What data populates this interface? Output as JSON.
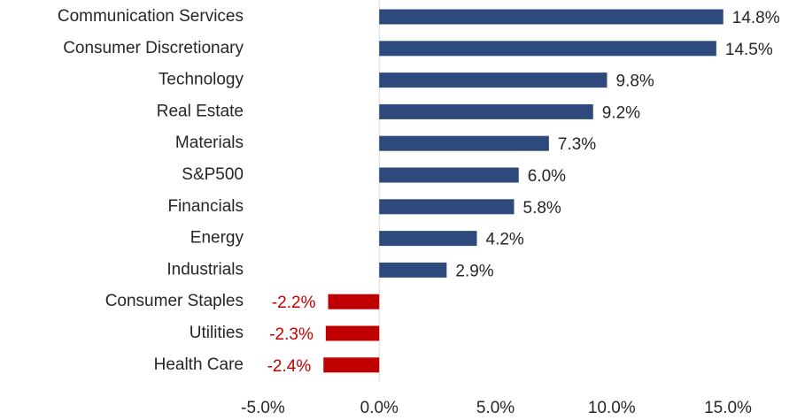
{
  "chart_data": {
    "type": "hbar",
    "categories": [
      "Communication Services",
      "Consumer Discretionary",
      "Technology",
      "Real Estate",
      "Materials",
      "S&P500",
      "Financials",
      "Energy",
      "Industrials",
      "Consumer Staples",
      "Utilities",
      "Health Care"
    ],
    "values": [
      14.8,
      14.5,
      9.8,
      9.2,
      7.3,
      6.0,
      5.8,
      4.2,
      2.9,
      -2.2,
      -2.3,
      -2.4
    ],
    "value_labels": [
      "14.8%",
      "14.5%",
      "9.8%",
      "9.2%",
      "7.3%",
      "6.0%",
      "5.8%",
      "4.2%",
      "2.9%",
      "-2.2%",
      "-2.3%",
      "-2.4%"
    ],
    "color": "#2E4A7D",
    "negative_color": "#C00000",
    "xlim": [
      -5,
      15
    ],
    "xticks": [
      {
        "value": -5,
        "label": "-5.0%"
      },
      {
        "value": 0,
        "label": "0.0%"
      },
      {
        "value": 5,
        "label": "5.0%"
      },
      {
        "value": 10,
        "label": "10.0%"
      },
      {
        "value": 15,
        "label": "15.0%"
      }
    ],
    "grid": false
  }
}
